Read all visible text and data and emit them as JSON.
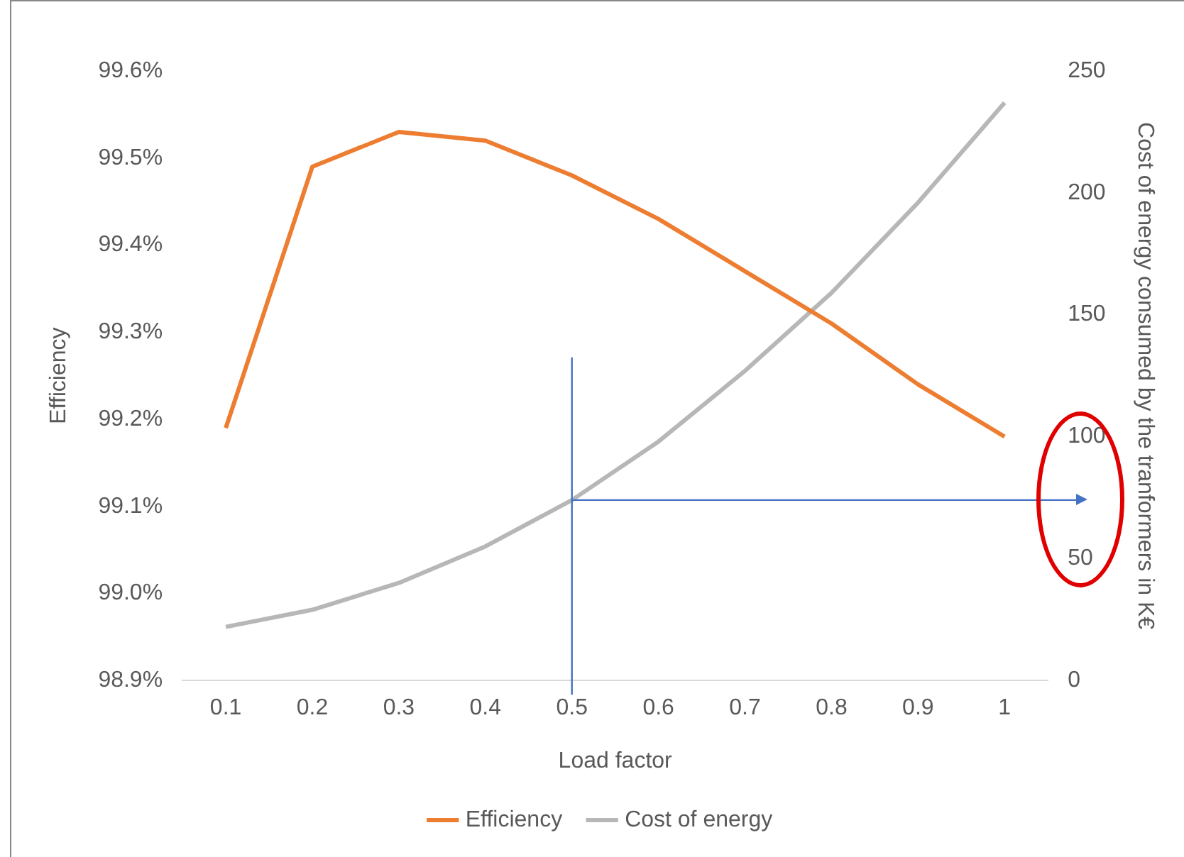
{
  "chart_data": {
    "type": "line",
    "xlabel": "Load factor",
    "ylabel": "Efficiency",
    "y2label": "Cost of energy consumed by the tranformers in K€",
    "categories": [
      "0.1",
      "0.2",
      "0.3",
      "0.4",
      "0.5",
      "0.6",
      "0.7",
      "0.8",
      "0.9",
      "1"
    ],
    "series": [
      {
        "name": "Efficiency",
        "color": "#ed7d31",
        "values": [
          99.19,
          99.49,
          99.53,
          99.52,
          99.48,
          99.43,
          99.37,
          99.31,
          99.24,
          99.18
        ]
      },
      {
        "name": "Cost of energy",
        "color": "#b7b7b7",
        "axis": "y2",
        "values": [
          22,
          29,
          40,
          55,
          74,
          98,
          127,
          159,
          196,
          237
        ]
      }
    ],
    "ylim": [
      98.9,
      99.6
    ],
    "yticks": [
      {
        "value": 98.9,
        "label": "98.9%"
      },
      {
        "value": 99.0,
        "label": "99.0%"
      },
      {
        "value": 99.1,
        "label": "99.1%"
      },
      {
        "value": 99.2,
        "label": "99.2%"
      },
      {
        "value": 99.3,
        "label": "99.3%"
      },
      {
        "value": 99.4,
        "label": "99.4%"
      },
      {
        "value": 99.5,
        "label": "99.5%"
      },
      {
        "value": 99.6,
        "label": "99.6%"
      }
    ],
    "y2lim": [
      0,
      250
    ],
    "y2ticks": [
      0,
      50,
      100,
      150,
      200,
      250
    ],
    "ref_lines": [
      {
        "axis": "x",
        "value": "0.5",
        "color": "#4472c4"
      },
      {
        "axis": "y2",
        "value": 74,
        "color": "#4472c4"
      }
    ],
    "grid": false,
    "legend": "bottom",
    "marker": "none",
    "line_style": "solid"
  }
}
